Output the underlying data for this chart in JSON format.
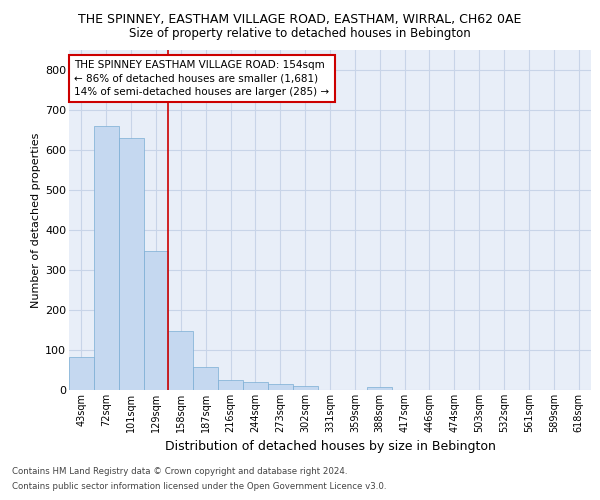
{
  "title1": "THE SPINNEY, EASTHAM VILLAGE ROAD, EASTHAM, WIRRAL, CH62 0AE",
  "title2": "Size of property relative to detached houses in Bebington",
  "xlabel": "Distribution of detached houses by size in Bebington",
  "ylabel": "Number of detached properties",
  "categories": [
    "43sqm",
    "72sqm",
    "101sqm",
    "129sqm",
    "158sqm",
    "187sqm",
    "216sqm",
    "244sqm",
    "273sqm",
    "302sqm",
    "331sqm",
    "359sqm",
    "388sqm",
    "417sqm",
    "446sqm",
    "474sqm",
    "503sqm",
    "532sqm",
    "561sqm",
    "589sqm",
    "618sqm"
  ],
  "values": [
    83,
    660,
    630,
    347,
    148,
    58,
    24,
    20,
    16,
    10,
    0,
    0,
    8,
    0,
    0,
    0,
    0,
    0,
    0,
    0,
    0
  ],
  "bar_color": "#c5d8f0",
  "bar_edge_color": "#7aadd4",
  "grid_color": "#c8d4e8",
  "background_color": "#e8eef8",
  "vline_x": 3.5,
  "vline_color": "#cc0000",
  "annotation_text": "THE SPINNEY EASTHAM VILLAGE ROAD: 154sqm\n← 86% of detached houses are smaller (1,681)\n14% of semi-detached houses are larger (285) →",
  "annotation_box_color": "#ffffff",
  "annotation_box_edge": "#cc0000",
  "ylim": [
    0,
    850
  ],
  "yticks": [
    0,
    100,
    200,
    300,
    400,
    500,
    600,
    700,
    800
  ],
  "footer1": "Contains HM Land Registry data © Crown copyright and database right 2024.",
  "footer2": "Contains public sector information licensed under the Open Government Licence v3.0."
}
